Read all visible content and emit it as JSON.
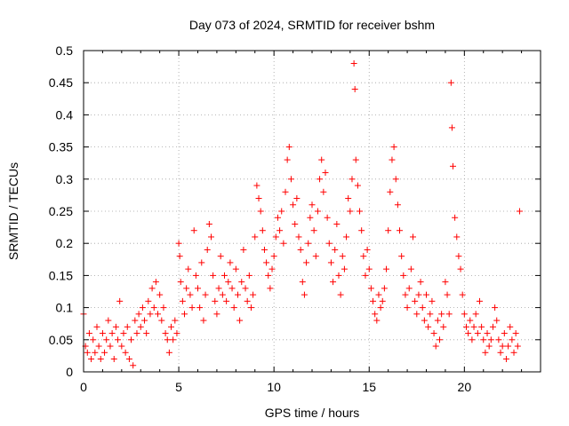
{
  "chart_data": {
    "type": "scatter",
    "title": "Day 073 of 2024, SRMTID for receiver bshm",
    "xlabel": "GPS time / hours",
    "ylabel": "SRMTID / TECUs",
    "xlim": [
      0,
      24
    ],
    "ylim": [
      0,
      0.5
    ],
    "xticks": [
      0,
      5,
      10,
      15,
      20
    ],
    "xtick_labels": [
      "0",
      "5",
      "10",
      "15",
      "20"
    ],
    "yticks": [
      0,
      0.05,
      0.1,
      0.15,
      0.2,
      0.25,
      0.3,
      0.35,
      0.4,
      0.45,
      0.5
    ],
    "ytick_labels": [
      "0",
      "0.05",
      "0.1",
      "0.15",
      "0.2",
      "0.25",
      "0.3",
      "0.35",
      "0.4",
      "0.45",
      "0.5"
    ],
    "grid": true,
    "marker": "+",
    "color": "#ff0000",
    "series": [
      {
        "name": "SRMTID",
        "points": [
          [
            0.0,
            0.09
          ],
          [
            0.1,
            0.04
          ],
          [
            0.2,
            0.03
          ],
          [
            0.3,
            0.06
          ],
          [
            0.4,
            0.02
          ],
          [
            0.5,
            0.05
          ],
          [
            0.6,
            0.03
          ],
          [
            0.7,
            0.07
          ],
          [
            0.8,
            0.04
          ],
          [
            0.9,
            0.02
          ],
          [
            1.0,
            0.06
          ],
          [
            1.1,
            0.03
          ],
          [
            1.2,
            0.05
          ],
          [
            1.3,
            0.08
          ],
          [
            1.4,
            0.04
          ],
          [
            1.5,
            0.06
          ],
          [
            1.6,
            0.02
          ],
          [
            1.7,
            0.07
          ],
          [
            1.8,
            0.05
          ],
          [
            1.9,
            0.11
          ],
          [
            2.0,
            0.04
          ],
          [
            2.1,
            0.06
          ],
          [
            2.2,
            0.03
          ],
          [
            2.3,
            0.07
          ],
          [
            2.4,
            0.02
          ],
          [
            2.5,
            0.05
          ],
          [
            2.6,
            0.01
          ],
          [
            2.7,
            0.08
          ],
          [
            2.8,
            0.06
          ],
          [
            2.9,
            0.09
          ],
          [
            3.0,
            0.07
          ],
          [
            3.1,
            0.1
          ],
          [
            3.2,
            0.08
          ],
          [
            3.3,
            0.06
          ],
          [
            3.4,
            0.11
          ],
          [
            3.5,
            0.09
          ],
          [
            3.6,
            0.13
          ],
          [
            3.7,
            0.1
          ],
          [
            3.8,
            0.14
          ],
          [
            3.9,
            0.09
          ],
          [
            4.0,
            0.12
          ],
          [
            4.1,
            0.08
          ],
          [
            4.2,
            0.1
          ],
          [
            4.3,
            0.06
          ],
          [
            4.4,
            0.05
          ],
          [
            4.5,
            0.03
          ],
          [
            4.6,
            0.07
          ],
          [
            4.7,
            0.05
          ],
          [
            4.8,
            0.08
          ],
          [
            4.9,
            0.06
          ],
          [
            5.0,
            0.2
          ],
          [
            5.05,
            0.18
          ],
          [
            5.1,
            0.14
          ],
          [
            5.2,
            0.11
          ],
          [
            5.3,
            0.09
          ],
          [
            5.4,
            0.13
          ],
          [
            5.5,
            0.16
          ],
          [
            5.6,
            0.12
          ],
          [
            5.7,
            0.1
          ],
          [
            5.8,
            0.22
          ],
          [
            5.9,
            0.15
          ],
          [
            6.0,
            0.13
          ],
          [
            6.1,
            0.1
          ],
          [
            6.2,
            0.17
          ],
          [
            6.3,
            0.08
          ],
          [
            6.4,
            0.12
          ],
          [
            6.5,
            0.19
          ],
          [
            6.6,
            0.23
          ],
          [
            6.7,
            0.21
          ],
          [
            6.8,
            0.15
          ],
          [
            6.9,
            0.11
          ],
          [
            7.0,
            0.09
          ],
          [
            7.1,
            0.13
          ],
          [
            7.2,
            0.18
          ],
          [
            7.3,
            0.12
          ],
          [
            7.4,
            0.15
          ],
          [
            7.5,
            0.11
          ],
          [
            7.6,
            0.14
          ],
          [
            7.7,
            0.17
          ],
          [
            7.8,
            0.13
          ],
          [
            7.9,
            0.1
          ],
          [
            8.0,
            0.16
          ],
          [
            8.1,
            0.12
          ],
          [
            8.2,
            0.08
          ],
          [
            8.3,
            0.14
          ],
          [
            8.4,
            0.19
          ],
          [
            8.5,
            0.13
          ],
          [
            8.6,
            0.11
          ],
          [
            8.7,
            0.15
          ],
          [
            8.8,
            0.1
          ],
          [
            8.9,
            0.12
          ],
          [
            9.0,
            0.21
          ],
          [
            9.1,
            0.29
          ],
          [
            9.2,
            0.27
          ],
          [
            9.3,
            0.25
          ],
          [
            9.4,
            0.22
          ],
          [
            9.5,
            0.19
          ],
          [
            9.6,
            0.17
          ],
          [
            9.7,
            0.15
          ],
          [
            9.8,
            0.13
          ],
          [
            9.9,
            0.16
          ],
          [
            10.0,
            0.18
          ],
          [
            10.1,
            0.21
          ],
          [
            10.2,
            0.24
          ],
          [
            10.3,
            0.22
          ],
          [
            10.4,
            0.25
          ],
          [
            10.5,
            0.2
          ],
          [
            10.6,
            0.28
          ],
          [
            10.7,
            0.33
          ],
          [
            10.8,
            0.35
          ],
          [
            10.9,
            0.3
          ],
          [
            11.0,
            0.26
          ],
          [
            11.1,
            0.23
          ],
          [
            11.2,
            0.27
          ],
          [
            11.3,
            0.21
          ],
          [
            11.4,
            0.19
          ],
          [
            11.5,
            0.14
          ],
          [
            11.6,
            0.12
          ],
          [
            11.7,
            0.17
          ],
          [
            11.8,
            0.2
          ],
          [
            11.9,
            0.24
          ],
          [
            12.0,
            0.26
          ],
          [
            12.1,
            0.22
          ],
          [
            12.2,
            0.18
          ],
          [
            12.3,
            0.25
          ],
          [
            12.4,
            0.3
          ],
          [
            12.5,
            0.33
          ],
          [
            12.6,
            0.28
          ],
          [
            12.7,
            0.31
          ],
          [
            12.8,
            0.24
          ],
          [
            12.9,
            0.2
          ],
          [
            13.0,
            0.17
          ],
          [
            13.1,
            0.14
          ],
          [
            13.2,
            0.19
          ],
          [
            13.3,
            0.23
          ],
          [
            13.4,
            0.15
          ],
          [
            13.5,
            0.12
          ],
          [
            13.6,
            0.18
          ],
          [
            13.7,
            0.16
          ],
          [
            13.8,
            0.21
          ],
          [
            13.9,
            0.27
          ],
          [
            14.0,
            0.25
          ],
          [
            14.1,
            0.3
          ],
          [
            14.2,
            0.48
          ],
          [
            14.25,
            0.44
          ],
          [
            14.3,
            0.33
          ],
          [
            14.4,
            0.29
          ],
          [
            14.5,
            0.25
          ],
          [
            14.6,
            0.22
          ],
          [
            14.7,
            0.18
          ],
          [
            14.8,
            0.15
          ],
          [
            14.9,
            0.19
          ],
          [
            15.0,
            0.16
          ],
          [
            15.1,
            0.13
          ],
          [
            15.2,
            0.11
          ],
          [
            15.3,
            0.09
          ],
          [
            15.4,
            0.08
          ],
          [
            15.5,
            0.12
          ],
          [
            15.6,
            0.1
          ],
          [
            15.7,
            0.11
          ],
          [
            15.8,
            0.13
          ],
          [
            15.9,
            0.16
          ],
          [
            16.0,
            0.22
          ],
          [
            16.1,
            0.28
          ],
          [
            16.2,
            0.33
          ],
          [
            16.3,
            0.35
          ],
          [
            16.4,
            0.3
          ],
          [
            16.5,
            0.26
          ],
          [
            16.6,
            0.22
          ],
          [
            16.7,
            0.18
          ],
          [
            16.8,
            0.15
          ],
          [
            16.9,
            0.12
          ],
          [
            17.0,
            0.1
          ],
          [
            17.1,
            0.13
          ],
          [
            17.2,
            0.16
          ],
          [
            17.3,
            0.21
          ],
          [
            17.4,
            0.11
          ],
          [
            17.5,
            0.09
          ],
          [
            17.6,
            0.12
          ],
          [
            17.7,
            0.14
          ],
          [
            17.8,
            0.1
          ],
          [
            17.9,
            0.08
          ],
          [
            18.0,
            0.12
          ],
          [
            18.1,
            0.07
          ],
          [
            18.2,
            0.09
          ],
          [
            18.3,
            0.11
          ],
          [
            18.4,
            0.06
          ],
          [
            18.5,
            0.04
          ],
          [
            18.6,
            0.08
          ],
          [
            18.7,
            0.05
          ],
          [
            18.8,
            0.09
          ],
          [
            18.9,
            0.07
          ],
          [
            19.0,
            0.14
          ],
          [
            19.1,
            0.12
          ],
          [
            19.2,
            0.09
          ],
          [
            19.3,
            0.45
          ],
          [
            19.35,
            0.38
          ],
          [
            19.4,
            0.32
          ],
          [
            19.5,
            0.24
          ],
          [
            19.6,
            0.21
          ],
          [
            19.7,
            0.18
          ],
          [
            19.8,
            0.16
          ],
          [
            19.9,
            0.12
          ],
          [
            20.0,
            0.09
          ],
          [
            20.1,
            0.07
          ],
          [
            20.2,
            0.06
          ],
          [
            20.3,
            0.08
          ],
          [
            20.4,
            0.05
          ],
          [
            20.5,
            0.07
          ],
          [
            20.6,
            0.09
          ],
          [
            20.7,
            0.06
          ],
          [
            20.8,
            0.11
          ],
          [
            20.9,
            0.07
          ],
          [
            21.0,
            0.05
          ],
          [
            21.1,
            0.03
          ],
          [
            21.2,
            0.06
          ],
          [
            21.3,
            0.04
          ],
          [
            21.4,
            0.05
          ],
          [
            21.5,
            0.07
          ],
          [
            21.6,
            0.1
          ],
          [
            21.7,
            0.08
          ],
          [
            21.8,
            0.05
          ],
          [
            21.9,
            0.03
          ],
          [
            22.0,
            0.04
          ],
          [
            22.1,
            0.06
          ],
          [
            22.2,
            0.02
          ],
          [
            22.3,
            0.04
          ],
          [
            22.4,
            0.07
          ],
          [
            22.5,
            0.05
          ],
          [
            22.6,
            0.03
          ],
          [
            22.7,
            0.06
          ],
          [
            22.8,
            0.04
          ],
          [
            22.9,
            0.25
          ]
        ]
      }
    ]
  }
}
